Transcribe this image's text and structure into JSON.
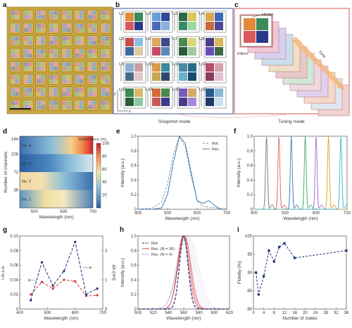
{
  "panels": {
    "a": "a",
    "b": "b",
    "c": "c",
    "d": "d",
    "e": "e",
    "f": "f",
    "g": "g",
    "h": "h",
    "i": "i"
  },
  "panel_b": {
    "caption": "Snapshot mode",
    "cell_labels": [
      "U1",
      "U2",
      "U3",
      "U4",
      "U5",
      "U6",
      "U7",
      "U8",
      "U9",
      "U10",
      "U11",
      "U12",
      "U13",
      "U14",
      "U15",
      "U16"
    ],
    "axis_y": "y",
    "axis_x": "x"
  },
  "panel_c": {
    "caption": "Tuning mode",
    "heater_label": "Heater",
    "filters_label": "Filters",
    "time_label": "Time"
  },
  "colors": {
    "frame_red": "#d9534f",
    "frame_blue": "#4050a0",
    "rec_blue": "#2f6fa7",
    "ref_gray": "#888888",
    "navy": "#1b2f7a",
    "red_series": "#d23a3a",
    "purple_series": "#6a6ab8"
  },
  "chart_data": [
    {
      "panel": "d",
      "type": "heatmap",
      "xlabel": "Wavelength (nm)",
      "ylabel": "Number of channels",
      "x_ticks": [
        "500",
        "600",
        "700"
      ],
      "y_ticks": [
        "36",
        "72",
        "108",
        "144"
      ],
      "colorbar_title": "Reflectance (%)",
      "colorbar_ticks": [
        "20",
        "40",
        "60",
        "80",
        "100"
      ],
      "row_labels": [
        "No. 1",
        "No. 2",
        "No. 3",
        "No. 4"
      ]
    },
    {
      "panel": "e",
      "type": "line",
      "xlabel": "Wavelength (nm)",
      "ylabel": "Intensity (a.u.)",
      "xlim": [
        400,
        700
      ],
      "ylim": [
        0,
        1.0
      ],
      "x_ticks": [
        "400",
        "500",
        "600",
        "700"
      ],
      "y_ticks": [
        "0",
        "0.2",
        "0.4",
        "0.6",
        "0.8",
        "1.0"
      ],
      "series": [
        {
          "name": "Ref.",
          "style": "dashed",
          "x": [
            400,
            450,
            480,
            500,
            520,
            540,
            560,
            580,
            600,
            620,
            640,
            660,
            680,
            700
          ],
          "values": [
            0,
            0.02,
            0.1,
            0.35,
            0.75,
            1.0,
            0.85,
            0.45,
            0.12,
            0.04,
            0.03,
            0.02,
            0.01,
            0
          ]
        },
        {
          "name": "Rec.",
          "style": "solid",
          "x": [
            400,
            450,
            480,
            500,
            520,
            540,
            560,
            580,
            600,
            620,
            640,
            660,
            680,
            700
          ],
          "values": [
            0,
            0,
            0.02,
            0.2,
            0.65,
            1.0,
            0.9,
            0.5,
            0.12,
            0.08,
            0.12,
            0.05,
            0,
            0
          ]
        }
      ]
    },
    {
      "panel": "f",
      "type": "line",
      "xlabel": "Wavelength (nm)",
      "ylabel": "Intensity (a.u.)",
      "xlim": [
        400,
        700
      ],
      "ylim": [
        0,
        1.0
      ],
      "x_ticks": [
        "400",
        "500",
        "600",
        "700"
      ],
      "y_ticks": [
        "0",
        "0.2",
        "0.4",
        "0.6",
        "0.8",
        "1.0"
      ],
      "peaks": [
        {
          "center": 440,
          "color": "#777777"
        },
        {
          "center": 480,
          "color": "#e06060"
        },
        {
          "center": 520,
          "color": "#3a7ab8"
        },
        {
          "center": 565,
          "color": "#3aaa6a"
        },
        {
          "center": 600,
          "color": "#9a6ad8"
        },
        {
          "center": 640,
          "color": "#e0a020"
        },
        {
          "center": 680,
          "color": "#30b8c8"
        }
      ]
    },
    {
      "panel": "g",
      "type": "line",
      "xlabel": "Wavelength (nm)",
      "ylabel": "r.m.s.e.",
      "ylabel_right": "Δλ (nm)",
      "xlim": [
        400,
        700
      ],
      "ylim": [
        0,
        0.1
      ],
      "ylim_right": [
        0,
        2.5
      ],
      "x_ticks": [
        "400",
        "500",
        "600",
        "700"
      ],
      "y_ticks": [
        "0",
        "0.02",
        "0.04",
        "0.06",
        "0.08",
        "0.10"
      ],
      "y_ticks_right": [
        "0",
        "1",
        "2"
      ],
      "series": [
        {
          "name": "r.m.s.e.",
          "axis": "left",
          "x": [
            440,
            480,
            520,
            560,
            600,
            640,
            680
          ],
          "values": [
            0.02,
            0.037,
            0.028,
            0.04,
            0.038,
            0.018,
            0.019
          ]
        },
        {
          "name": "Δλ",
          "axis": "right",
          "x": [
            440,
            480,
            520,
            560,
            600,
            640,
            680
          ],
          "values": [
            0.3,
            1.6,
            0.8,
            1.3,
            2.3,
            0.5,
            0.7
          ]
        }
      ]
    },
    {
      "panel": "h",
      "type": "line",
      "xlabel": "Wavelength (nm)",
      "ylabel": "Intensity (a.u.)",
      "xlim": [
        500,
        620
      ],
      "ylim": [
        0,
        1.0
      ],
      "x_ticks": [
        "500",
        "520",
        "540",
        "560",
        "580",
        "600",
        "620"
      ],
      "y_ticks": [
        "0",
        "0.2",
        "0.4",
        "0.6",
        "0.8",
        "1.0"
      ],
      "series": [
        {
          "name": "Ref.",
          "style": "dashed",
          "center": 560,
          "width": 8
        },
        {
          "name": "Rec. (N = 36)",
          "style": "solid",
          "center": 560,
          "width": 11
        },
        {
          "name": "Rec. (N = 4)",
          "style": "dotted",
          "center": 563,
          "width": 16
        }
      ]
    },
    {
      "panel": "i",
      "type": "line",
      "xlabel": "Number of states",
      "ylabel": "Fidelity (%)",
      "xlim": [
        0,
        36
      ],
      "ylim": [
        80,
        100
      ],
      "x_ticks": [
        "0",
        "4",
        "8",
        "12",
        "16",
        "20",
        "24",
        "28",
        "32",
        "36"
      ],
      "y_ticks": [
        "80",
        "85",
        "90",
        "95",
        "100"
      ],
      "series": [
        {
          "name": "Fidelity",
          "x": [
            1,
            2,
            4,
            6,
            8,
            10,
            12,
            16,
            36
          ],
          "values": [
            90,
            84,
            89,
            96,
            93,
            97,
            98,
            94,
            96
          ]
        }
      ]
    }
  ]
}
